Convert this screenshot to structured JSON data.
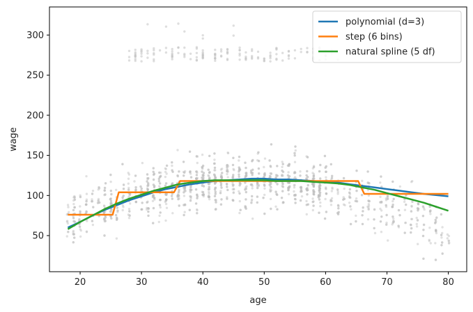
{
  "chart_data": {
    "type": "line",
    "xlabel": "age",
    "ylabel": "wage",
    "xlim": [
      15,
      83
    ],
    "ylim": [
      5,
      335
    ],
    "xticks": [
      20,
      30,
      40,
      50,
      60,
      70,
      80
    ],
    "yticks": [
      50,
      100,
      150,
      200,
      250,
      300
    ],
    "grid": false,
    "legend_position": "upper right",
    "scatter": {
      "color": "#bdbdbd",
      "seed": 7,
      "n_main": 1600
    },
    "series": [
      {
        "name": "polynomial (d=3)",
        "color": "#1f77b4",
        "x": [
          18,
          20,
          22,
          24,
          26,
          28,
          30,
          32,
          34,
          36,
          38,
          40,
          42,
          44,
          46,
          48,
          50,
          52,
          54,
          56,
          58,
          60,
          62,
          64,
          66,
          68,
          70,
          72,
          74,
          76,
          78,
          80
        ],
        "y": [
          60,
          67,
          75,
          82,
          88,
          94,
          99,
          104,
          108,
          111,
          114,
          116,
          118,
          119,
          120,
          121,
          121,
          120,
          120,
          119,
          118,
          117,
          116,
          114,
          112,
          110,
          108,
          106,
          104,
          102,
          100.5,
          99
        ]
      },
      {
        "name": "step (6 bins)",
        "color": "#ff7f0e",
        "x": [
          18,
          25.3,
          26.3,
          35.3,
          36.3,
          45.3,
          46.3,
          55.3,
          56.3,
          65.3,
          66.3,
          80
        ],
        "y": [
          76,
          76,
          104,
          104,
          118,
          118,
          118,
          118,
          118,
          118,
          102,
          102
        ]
      },
      {
        "name": "natural spline (5 df)",
        "color": "#2ca02c",
        "x": [
          18,
          20,
          22,
          24,
          26,
          28,
          30,
          32,
          34,
          36,
          38,
          40,
          42,
          44,
          46,
          48,
          50,
          52,
          54,
          56,
          58,
          60,
          62,
          64,
          66,
          68,
          70,
          72,
          74,
          76,
          78,
          80
        ],
        "y": [
          58,
          67,
          75,
          83,
          90,
          96,
          101,
          106,
          110,
          114,
          116,
          118,
          119,
          119,
          119,
          119,
          119,
          118,
          118,
          118,
          117,
          116,
          115,
          113,
          110,
          107,
          103,
          99,
          95,
          91,
          86,
          81
        ]
      }
    ]
  }
}
